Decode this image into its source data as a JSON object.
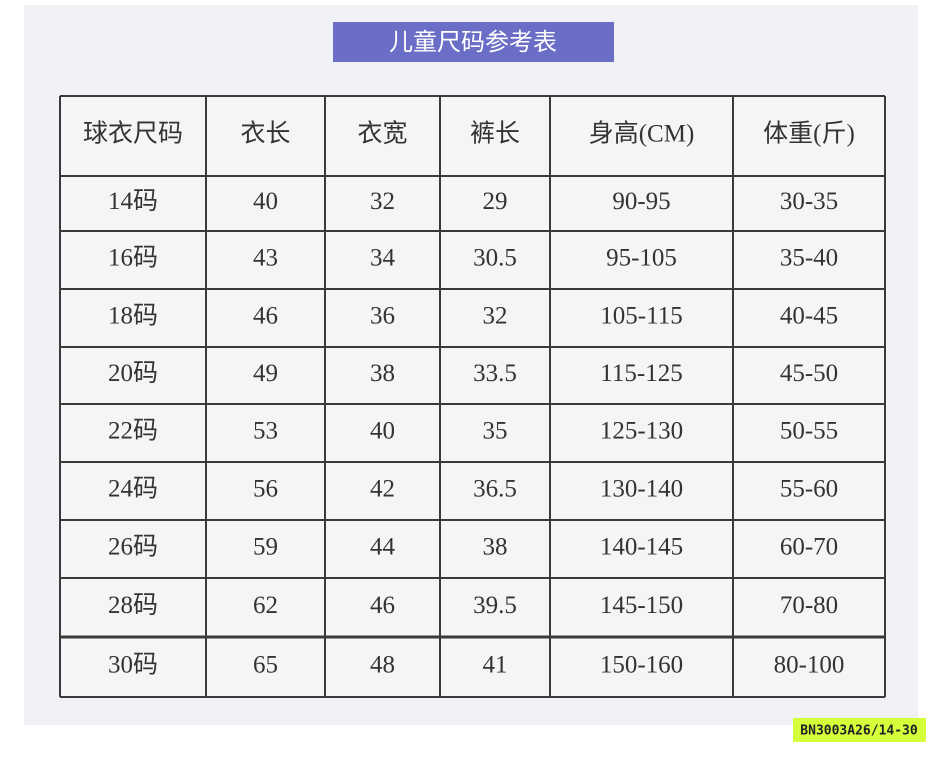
{
  "title": "儿童尺码参考表",
  "table": {
    "header": [
      "球衣尺码",
      "衣长",
      "衣宽",
      "裤长",
      "身高(CM)",
      "体重(斤)"
    ],
    "rows": [
      [
        "14码",
        "40",
        "32",
        "29",
        "90-95",
        "30-35"
      ],
      [
        "16码",
        "43",
        "34",
        "30.5",
        "95-105",
        "35-40"
      ],
      [
        "18码",
        "46",
        "36",
        "32",
        "105-115",
        "40-45"
      ],
      [
        "20码",
        "49",
        "38",
        "33.5",
        "115-125",
        "45-50"
      ],
      [
        "22码",
        "53",
        "40",
        "35",
        "125-130",
        "50-55"
      ],
      [
        "24码",
        "56",
        "42",
        "36.5",
        "130-140",
        "55-60"
      ],
      [
        "26码",
        "59",
        "44",
        "38",
        "140-145",
        "60-70"
      ],
      [
        "28码",
        "62",
        "46",
        "39.5",
        "145-150",
        "70-80"
      ],
      [
        "30码",
        "65",
        "48",
        "41",
        "150-160",
        "80-100"
      ]
    ]
  },
  "code": "BN3003A26/14-30"
}
